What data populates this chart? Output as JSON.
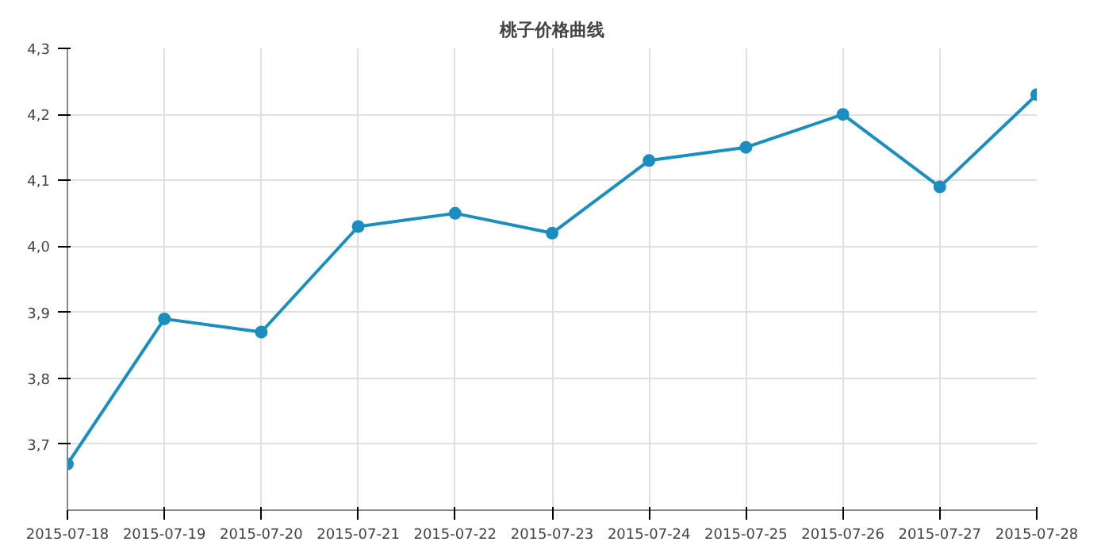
{
  "chart_data": {
    "type": "line",
    "title": "桃子价格曲线",
    "categories": [
      "2015-07-18",
      "2015-07-19",
      "2015-07-20",
      "2015-07-21",
      "2015-07-22",
      "2015-07-23",
      "2015-07-24",
      "2015-07-25",
      "2015-07-26",
      "2015-07-27",
      "2015-07-28"
    ],
    "series": [
      {
        "color": "#1a8fbf",
        "values": [
          3.67,
          3.89,
          3.87,
          4.03,
          4.05,
          4.02,
          4.13,
          4.15,
          4.2,
          4.09,
          4.23
        ]
      }
    ],
    "ylim": [
      3.6,
      4.3
    ],
    "yticks": [
      {
        "value": 3.7,
        "label": "3,7"
      },
      {
        "value": 3.8,
        "label": "3,8"
      },
      {
        "value": 3.9,
        "label": "3,9"
      },
      {
        "value": 4.0,
        "label": "4,0"
      },
      {
        "value": 4.1,
        "label": "4,1"
      },
      {
        "value": 4.2,
        "label": "4,2"
      },
      {
        "value": 4.3,
        "label": "4,3"
      }
    ],
    "grid": true,
    "marker": "circle",
    "line_style": "solid"
  }
}
